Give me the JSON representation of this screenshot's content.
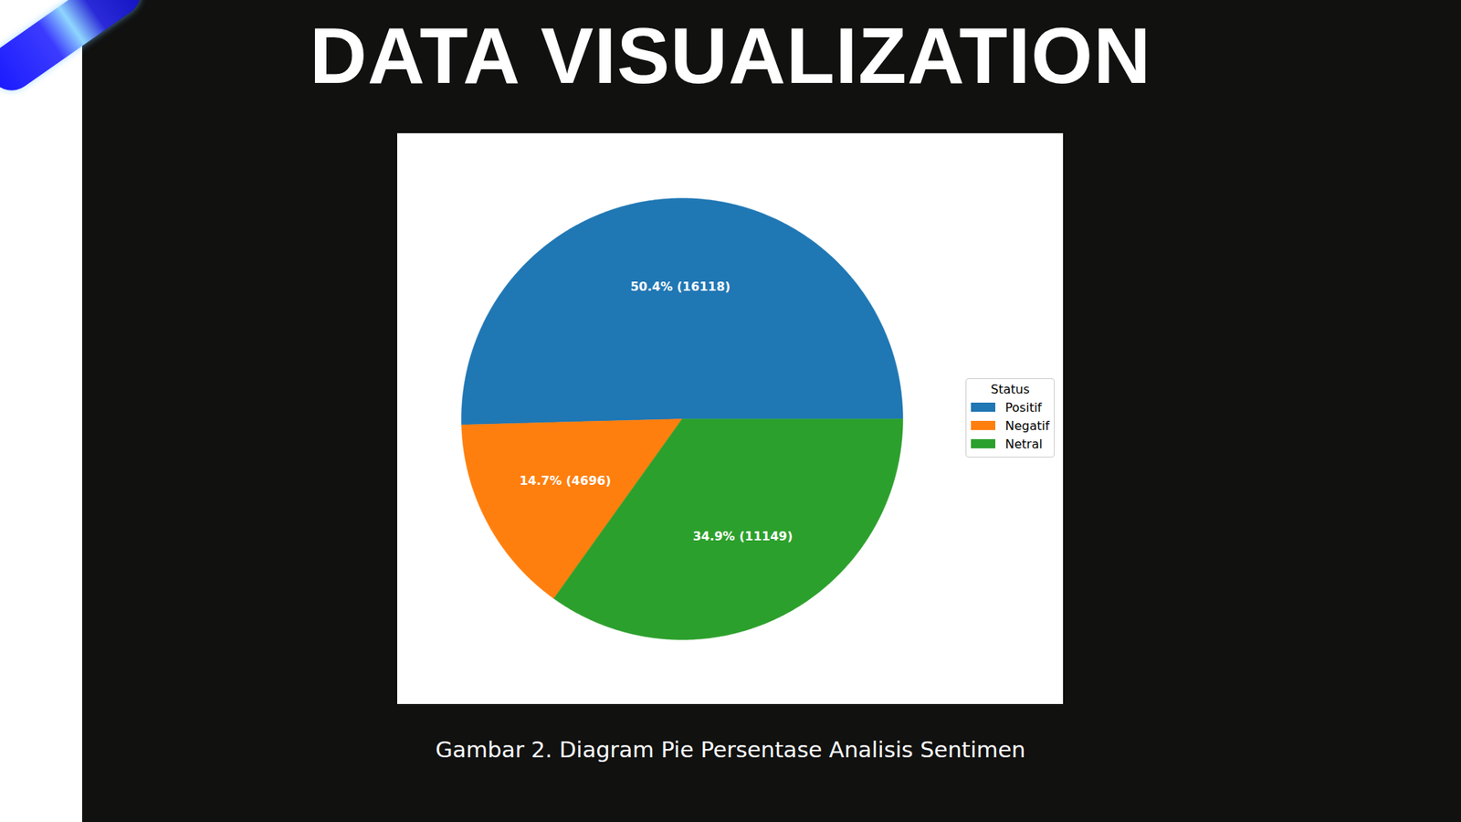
{
  "heading": "DATA VISUALIZATION",
  "caption": "Gambar 2. Diagram Pie Persentase Analisis Sentimen",
  "chart_data": {
    "type": "pie",
    "categories": [
      "Positif",
      "Negatif",
      "Netral"
    ],
    "values": [
      16118,
      4696,
      11149
    ],
    "value_labels": [
      "50.4% (16118)",
      "14.7% (4696)",
      "34.9% (11149)"
    ],
    "colors": [
      "#1f77b4",
      "#ff7f0e",
      "#2ca02c"
    ],
    "data_labels": true,
    "legend": "right",
    "legend_title": "Status",
    "tick_labels": false
  }
}
